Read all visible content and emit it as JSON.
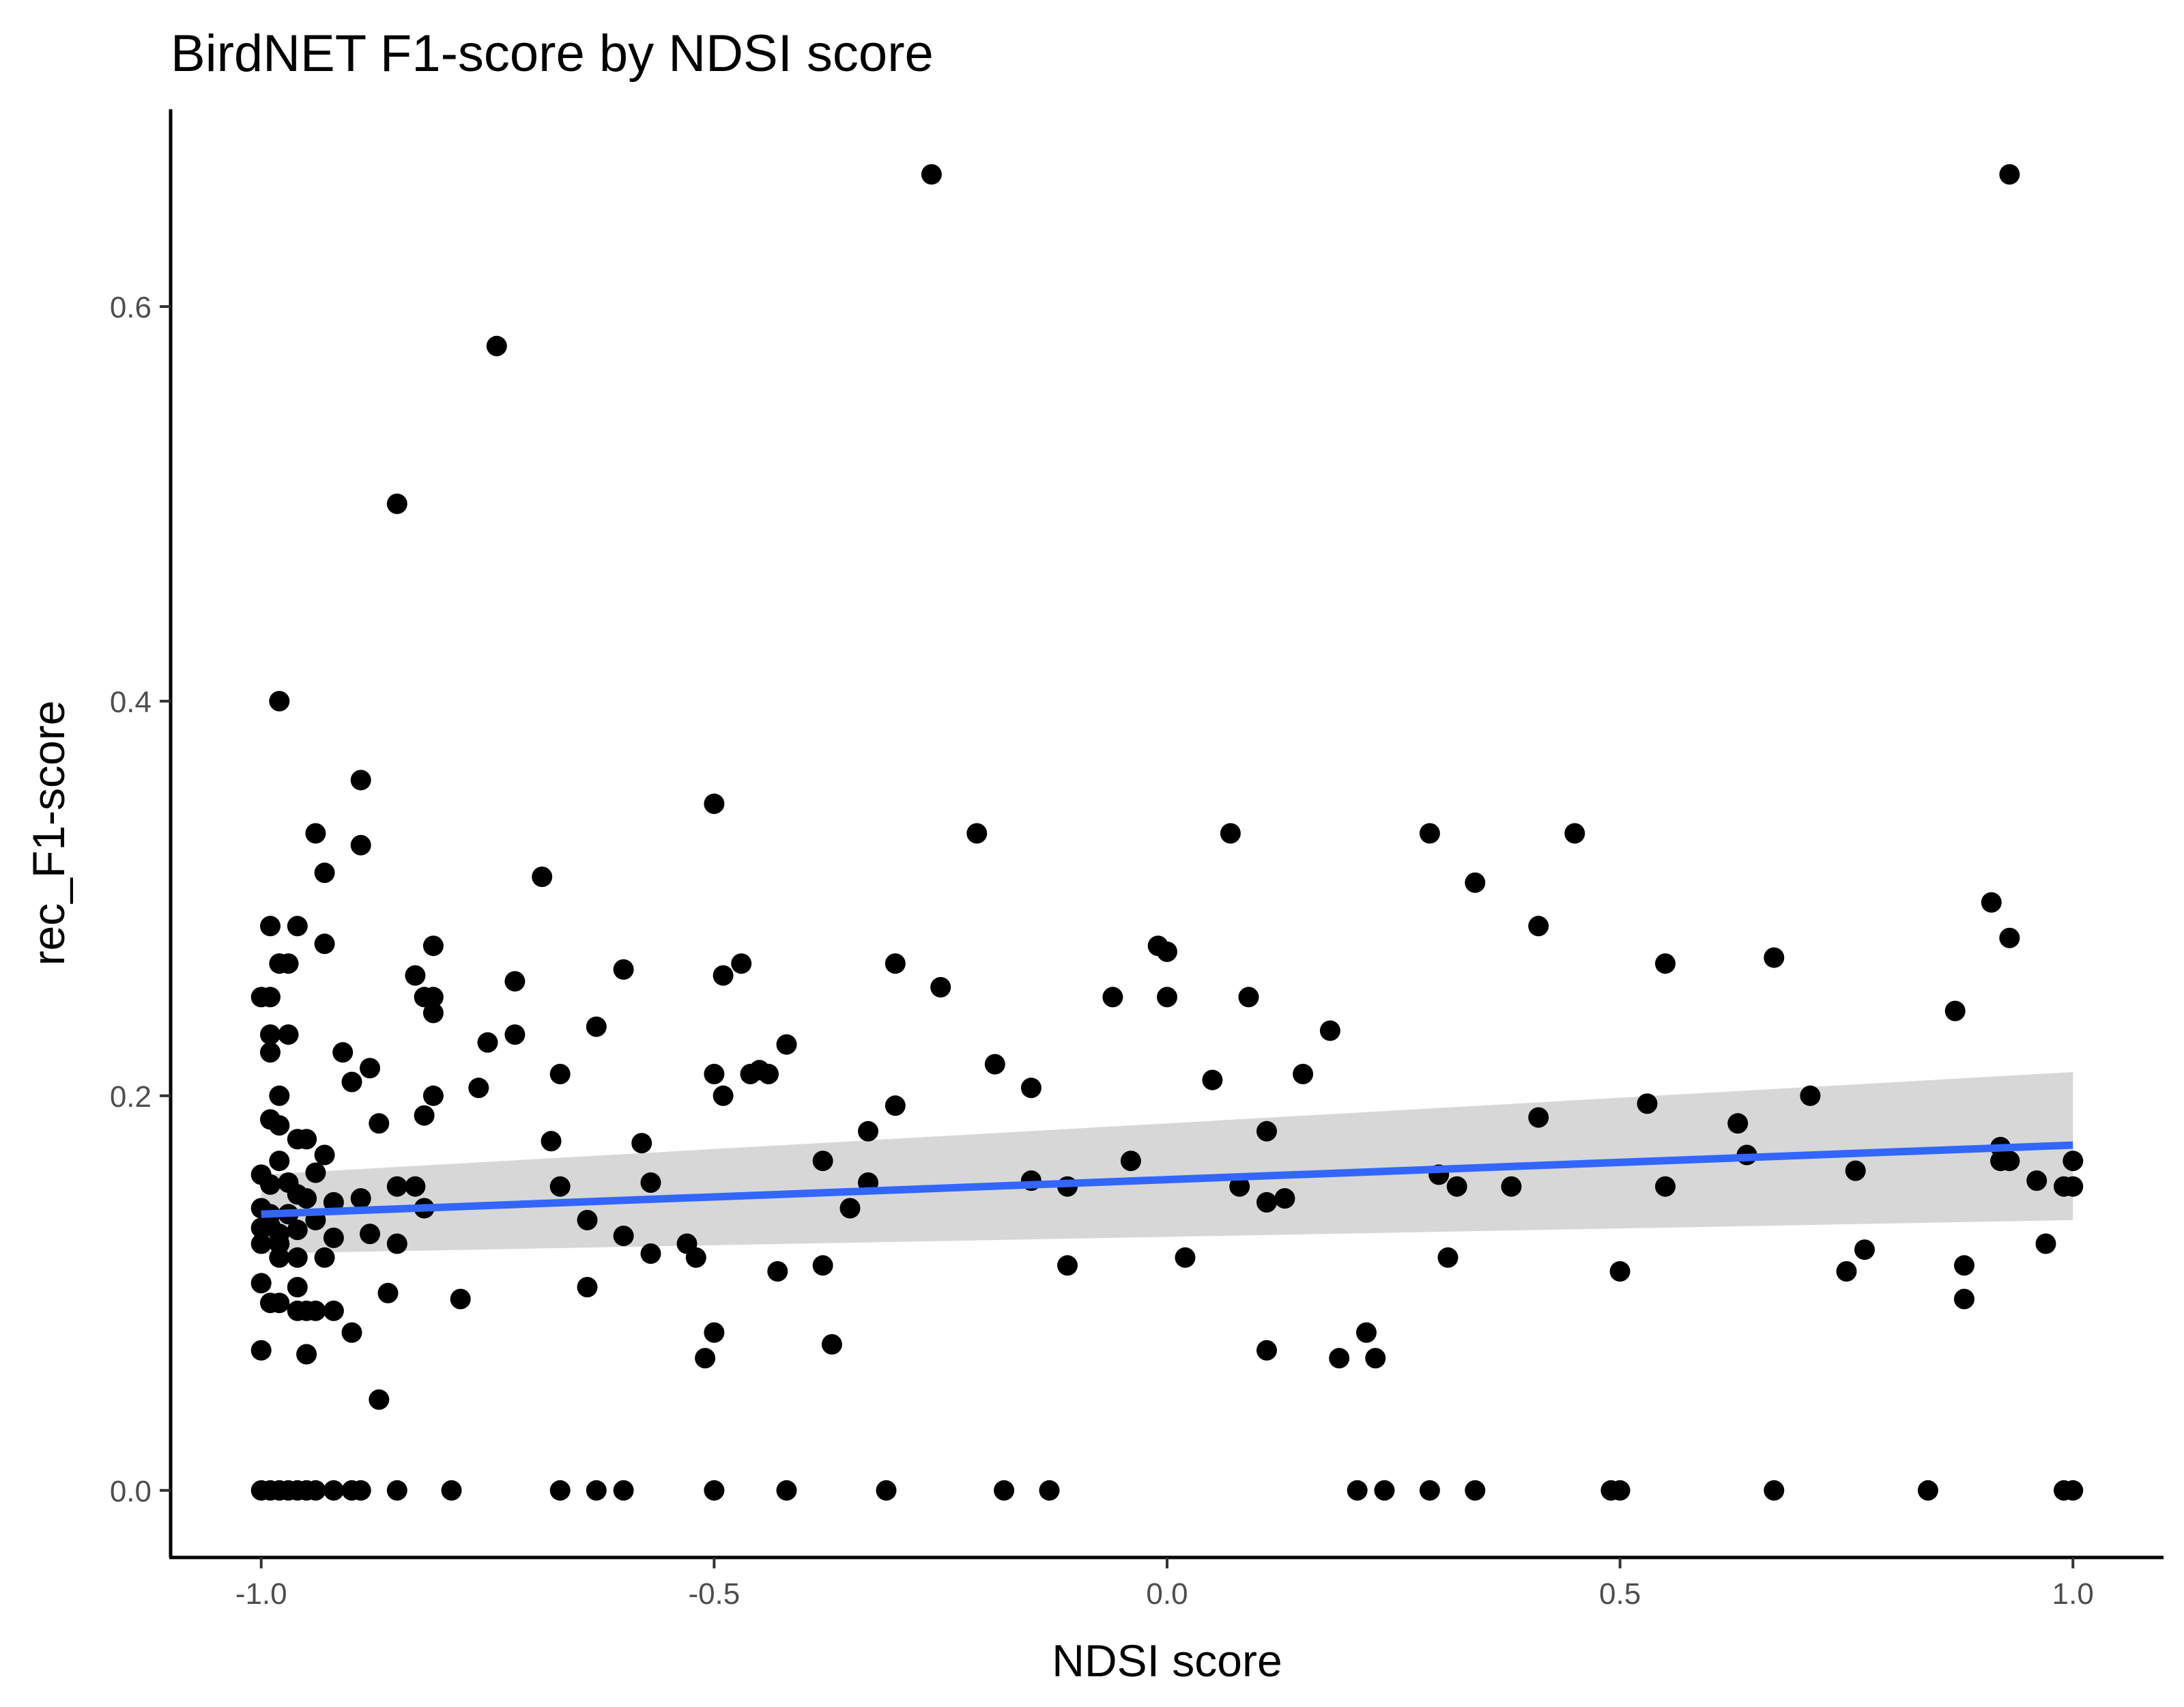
{
  "chart_data": {
    "type": "scatter",
    "title": "BirdNET F1-score by NDSI score",
    "xlabel": "NDSI score",
    "ylabel": "rec_F1-score",
    "xlim": [
      -1.1,
      1.1
    ],
    "ylim": [
      -0.034,
      0.7
    ],
    "xticks": [
      {
        "value": -1.0,
        "label": "-1.0"
      },
      {
        "value": -0.5,
        "label": "-0.5"
      },
      {
        "value": 0.0,
        "label": "0.0"
      },
      {
        "value": 0.5,
        "label": "0.5"
      },
      {
        "value": 1.0,
        "label": "1.0"
      }
    ],
    "yticks": [
      {
        "value": 0.0,
        "label": "0.0"
      },
      {
        "value": 0.2,
        "label": "0.2"
      },
      {
        "value": 0.4,
        "label": "0.4"
      },
      {
        "value": 0.6,
        "label": "0.6"
      }
    ],
    "grid": false,
    "colors": {
      "points": "#000000",
      "trend": "#3366ff",
      "band": "#d3d3d3"
    },
    "trend": {
      "method": "linear",
      "x": [
        -1.0,
        1.0
      ],
      "y": [
        0.14,
        0.175
      ],
      "ci_lower": [
        0.12,
        0.137
      ],
      "ci_upper": [
        0.16,
        0.212
      ]
    },
    "points": [
      [
        -0.26,
        0.667
      ],
      [
        0.93,
        0.667
      ],
      [
        -0.74,
        0.58
      ],
      [
        -0.85,
        0.5
      ],
      [
        -0.98,
        0.4
      ],
      [
        -0.89,
        0.36
      ],
      [
        -0.5,
        0.348
      ],
      [
        -0.94,
        0.333
      ],
      [
        -0.21,
        0.333
      ],
      [
        0.07,
        0.333
      ],
      [
        0.29,
        0.333
      ],
      [
        0.45,
        0.333
      ],
      [
        -0.89,
        0.327
      ],
      [
        -0.93,
        0.313
      ],
      [
        -0.69,
        0.311
      ],
      [
        0.34,
        0.308
      ],
      [
        0.91,
        0.298
      ],
      [
        -0.99,
        0.286
      ],
      [
        -0.96,
        0.286
      ],
      [
        0.41,
        0.286
      ],
      [
        0.93,
        0.28
      ],
      [
        -0.93,
        0.277
      ],
      [
        -0.81,
        0.276
      ],
      [
        -0.01,
        0.276
      ],
      [
        0.0,
        0.273
      ],
      [
        0.67,
        0.27
      ],
      [
        -0.98,
        0.267
      ],
      [
        -0.97,
        0.267
      ],
      [
        -0.47,
        0.267
      ],
      [
        -0.3,
        0.267
      ],
      [
        0.55,
        0.267
      ],
      [
        -0.6,
        0.264
      ],
      [
        -0.83,
        0.261
      ],
      [
        -0.49,
        0.261
      ],
      [
        -0.72,
        0.258
      ],
      [
        -0.25,
        0.255
      ],
      [
        -1.0,
        0.25
      ],
      [
        -0.99,
        0.25
      ],
      [
        -0.82,
        0.25
      ],
      [
        -0.81,
        0.25
      ],
      [
        -0.06,
        0.25
      ],
      [
        0.0,
        0.25
      ],
      [
        0.09,
        0.25
      ],
      [
        0.87,
        0.243
      ],
      [
        -0.81,
        0.242
      ],
      [
        -0.99,
        0.231
      ],
      [
        -0.97,
        0.231
      ],
      [
        -0.72,
        0.231
      ],
      [
        -0.63,
        0.235
      ],
      [
        0.18,
        0.233
      ],
      [
        -0.75,
        0.227
      ],
      [
        -0.42,
        0.226
      ],
      [
        -0.99,
        0.222
      ],
      [
        -0.91,
        0.222
      ],
      [
        -0.88,
        0.214
      ],
      [
        -0.19,
        0.216
      ],
      [
        -0.45,
        0.213
      ],
      [
        -0.5,
        0.211
      ],
      [
        -0.46,
        0.211
      ],
      [
        -0.44,
        0.211
      ],
      [
        -0.67,
        0.211
      ],
      [
        0.15,
        0.211
      ],
      [
        -0.9,
        0.207
      ],
      [
        0.05,
        0.208
      ],
      [
        -0.76,
        0.204
      ],
      [
        -0.15,
        0.204
      ],
      [
        -0.98,
        0.2
      ],
      [
        -0.81,
        0.2
      ],
      [
        -0.49,
        0.2
      ],
      [
        0.71,
        0.2
      ],
      [
        0.53,
        0.196
      ],
      [
        -0.3,
        0.195
      ],
      [
        -0.82,
        0.19
      ],
      [
        0.41,
        0.189
      ],
      [
        -0.99,
        0.188
      ],
      [
        -0.98,
        0.185
      ],
      [
        -0.87,
        0.186
      ],
      [
        0.63,
        0.186
      ],
      [
        -0.33,
        0.182
      ],
      [
        0.11,
        0.182
      ],
      [
        -0.96,
        0.178
      ],
      [
        -0.95,
        0.178
      ],
      [
        -0.68,
        0.177
      ],
      [
        -0.58,
        0.176
      ],
      [
        0.92,
        0.174
      ],
      [
        -0.93,
        0.17
      ],
      [
        0.64,
        0.17
      ],
      [
        -0.98,
        0.167
      ],
      [
        -0.38,
        0.167
      ],
      [
        -0.04,
        0.167
      ],
      [
        0.92,
        0.167
      ],
      [
        0.93,
        0.167
      ],
      [
        1.0,
        0.167
      ],
      [
        -1.0,
        0.16
      ],
      [
        -0.94,
        0.161
      ],
      [
        0.76,
        0.162
      ],
      [
        0.3,
        0.16
      ],
      [
        -0.99,
        0.155
      ],
      [
        -0.97,
        0.156
      ],
      [
        -0.85,
        0.154
      ],
      [
        -0.83,
        0.154
      ],
      [
        -0.67,
        0.154
      ],
      [
        -0.57,
        0.156
      ],
      [
        -0.33,
        0.156
      ],
      [
        -0.15,
        0.157
      ],
      [
        -0.11,
        0.154
      ],
      [
        0.08,
        0.154
      ],
      [
        0.32,
        0.154
      ],
      [
        0.38,
        0.154
      ],
      [
        0.55,
        0.154
      ],
      [
        0.96,
        0.157
      ],
      [
        0.99,
        0.154
      ],
      [
        1.0,
        0.154
      ],
      [
        -0.96,
        0.15
      ],
      [
        -0.95,
        0.148
      ],
      [
        -0.92,
        0.146
      ],
      [
        -0.89,
        0.148
      ],
      [
        -0.82,
        0.143
      ],
      [
        -0.35,
        0.143
      ],
      [
        0.11,
        0.146
      ],
      [
        0.13,
        0.148
      ],
      [
        -1.0,
        0.143
      ],
      [
        -0.99,
        0.14
      ],
      [
        -0.97,
        0.14
      ],
      [
        -0.94,
        0.137
      ],
      [
        -0.64,
        0.137
      ],
      [
        -0.99,
        0.134
      ],
      [
        -1.0,
        0.133
      ],
      [
        -0.96,
        0.132
      ],
      [
        -0.98,
        0.13
      ],
      [
        -0.92,
        0.128
      ],
      [
        -0.88,
        0.13
      ],
      [
        -0.6,
        0.129
      ],
      [
        -1.0,
        0.125
      ],
      [
        -0.98,
        0.125
      ],
      [
        -0.85,
        0.125
      ],
      [
        -0.53,
        0.125
      ],
      [
        -0.57,
        0.12
      ],
      [
        0.97,
        0.125
      ],
      [
        0.77,
        0.122
      ],
      [
        -0.98,
        0.118
      ],
      [
        -0.96,
        0.118
      ],
      [
        -0.93,
        0.118
      ],
      [
        -0.52,
        0.118
      ],
      [
        0.02,
        0.118
      ],
      [
        0.31,
        0.118
      ],
      [
        -0.38,
        0.114
      ],
      [
        -0.11,
        0.114
      ],
      [
        0.88,
        0.114
      ],
      [
        -0.43,
        0.111
      ],
      [
        0.5,
        0.111
      ],
      [
        0.75,
        0.111
      ],
      [
        -1.0,
        0.105
      ],
      [
        -0.96,
        0.103
      ],
      [
        -0.64,
        0.103
      ],
      [
        -0.86,
        0.1
      ],
      [
        -0.99,
        0.095
      ],
      [
        -0.98,
        0.095
      ],
      [
        -0.78,
        0.097
      ],
      [
        0.88,
        0.097
      ],
      [
        -0.96,
        0.091
      ],
      [
        -0.95,
        0.091
      ],
      [
        -0.94,
        0.091
      ],
      [
        -0.92,
        0.091
      ],
      [
        -0.9,
        0.08
      ],
      [
        -0.5,
        0.08
      ],
      [
        0.22,
        0.08
      ],
      [
        -0.37,
        0.074
      ],
      [
        -1.0,
        0.071
      ],
      [
        -0.95,
        0.069
      ],
      [
        0.11,
        0.071
      ],
      [
        -0.51,
        0.067
      ],
      [
        0.19,
        0.067
      ],
      [
        0.23,
        0.067
      ],
      [
        -0.87,
        0.046
      ],
      [
        -1.0,
        0.0
      ],
      [
        -0.99,
        0.0
      ],
      [
        -0.98,
        0.0
      ],
      [
        -0.97,
        0.0
      ],
      [
        -0.96,
        0.0
      ],
      [
        -0.95,
        0.0
      ],
      [
        -0.94,
        0.0
      ],
      [
        -0.92,
        0.0
      ],
      [
        -0.9,
        0.0
      ],
      [
        -0.89,
        0.0
      ],
      [
        -0.85,
        0.0
      ],
      [
        -0.79,
        0.0
      ],
      [
        -0.67,
        0.0
      ],
      [
        -0.63,
        0.0
      ],
      [
        -0.6,
        0.0
      ],
      [
        -0.5,
        0.0
      ],
      [
        -0.42,
        0.0
      ],
      [
        -0.31,
        0.0
      ],
      [
        -0.18,
        0.0
      ],
      [
        -0.13,
        0.0
      ],
      [
        0.21,
        0.0
      ],
      [
        0.24,
        0.0
      ],
      [
        0.29,
        0.0
      ],
      [
        0.34,
        0.0
      ],
      [
        0.49,
        0.0
      ],
      [
        0.5,
        0.0
      ],
      [
        0.67,
        0.0
      ],
      [
        0.84,
        0.0
      ],
      [
        0.99,
        0.0
      ],
      [
        1.0,
        0.0
      ]
    ]
  }
}
